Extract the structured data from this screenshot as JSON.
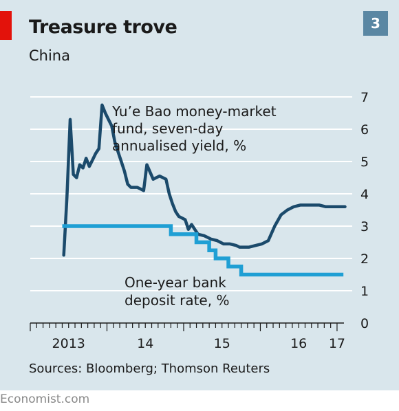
{
  "title": "Treasure trove",
  "subtitle": "China",
  "badge": "3",
  "source": "Sources: Bloomberg; Thomson Reuters",
  "brand": "Economist.com",
  "colors": {
    "background": "#d9e6ec",
    "accent_red": "#e3120b",
    "badge": "#5a87a3",
    "yield_series": "#1b4a6b",
    "deposit_series": "#1f9fd4",
    "gridline": "#ffffff"
  },
  "chart_data": {
    "type": "line",
    "title": "Treasure trove",
    "subtitle": "China",
    "xlabel": "",
    "ylabel": "",
    "ylim": [
      0,
      7
    ],
    "y_ticks": [
      "0",
      "1",
      "2",
      "3",
      "4",
      "5",
      "6",
      "7"
    ],
    "x_tick_labels": [
      "2013",
      "14",
      "15",
      "16",
      "17"
    ],
    "x_tick_dates": [
      2013.5,
      2014.5,
      2015.5,
      2016.5,
      2017.0
    ],
    "grid": true,
    "y_axis_side": "right",
    "series": [
      {
        "name": "Yu’e Bao money-market fund, seven-day annualised yield, %",
        "label_lines": [
          "Yu’e Bao money-market",
          "fund, seven-day",
          "annualised yield, %"
        ],
        "x": [
          "2013-06",
          "2013-06",
          "2013-07",
          "2013-07",
          "2013-08",
          "2013-08",
          "2013-09",
          "2013-09",
          "2013-10",
          "2013-10",
          "2013-11",
          "2013-11",
          "2013-12",
          "2013-12",
          "2014-01",
          "2014-01",
          "2014-02",
          "2014-02",
          "2014-03",
          "2014-03",
          "2014-04",
          "2014-04",
          "2014-05",
          "2014-05",
          "2014-06",
          "2014-06",
          "2014-07",
          "2014-08",
          "2014-09",
          "2014-10",
          "2014-10",
          "2014-11",
          "2014-11",
          "2014-12",
          "2014-12",
          "2015-01",
          "2015-01",
          "2015-02",
          "2015-02",
          "2015-03",
          "2015-04",
          "2015-04",
          "2015-05",
          "2015-06",
          "2015-06",
          "2015-07",
          "2015-07",
          "2015-08",
          "2015-09",
          "2015-09",
          "2015-10",
          "2015-11",
          "2015-12",
          "2016-01",
          "2016-02",
          "2016-03",
          "2016-04",
          "2016-05",
          "2016-06",
          "2016-07",
          "2016-08",
          "2016-09",
          "2016-10",
          "2016-11",
          "2016-11",
          "2016-12",
          "2017-01",
          "2017-01",
          "2017-02"
        ],
        "values": [
          2.1,
          3.9,
          6.3,
          4.6,
          4.5,
          4.9,
          4.8,
          5.1,
          4.85,
          5.05,
          5.25,
          5.4,
          6.75,
          6.5,
          6.3,
          6.1,
          5.6,
          5.3,
          5.0,
          4.7,
          4.3,
          4.2,
          4.2,
          4.2,
          4.15,
          4.1,
          4.9,
          4.45,
          4.55,
          4.45,
          4.0,
          3.7,
          3.45,
          3.3,
          3.25,
          3.2,
          2.9,
          3.05,
          2.9,
          2.75,
          2.7,
          2.65,
          2.6,
          2.55,
          2.5,
          2.45,
          2.45,
          2.45,
          2.4,
          2.35,
          2.35,
          2.35,
          2.4,
          2.45,
          2.55,
          3.0,
          3.35,
          3.5,
          3.6,
          3.65,
          3.65,
          3.65,
          3.65,
          3.6,
          3.6,
          3.6,
          3.6,
          3.6,
          3.6
        ]
      },
      {
        "name": "One-year bank deposit rate, %",
        "label_lines": [
          "One-year bank",
          "deposit rate, %"
        ],
        "type": "step",
        "x": [
          "2013-06",
          "2014-11",
          "2015-03",
          "2015-05",
          "2015-06",
          "2015-08",
          "2015-10",
          "2017-02"
        ],
        "values": [
          3.0,
          2.75,
          2.5,
          2.25,
          2.0,
          1.75,
          1.5,
          1.5
        ]
      }
    ]
  }
}
